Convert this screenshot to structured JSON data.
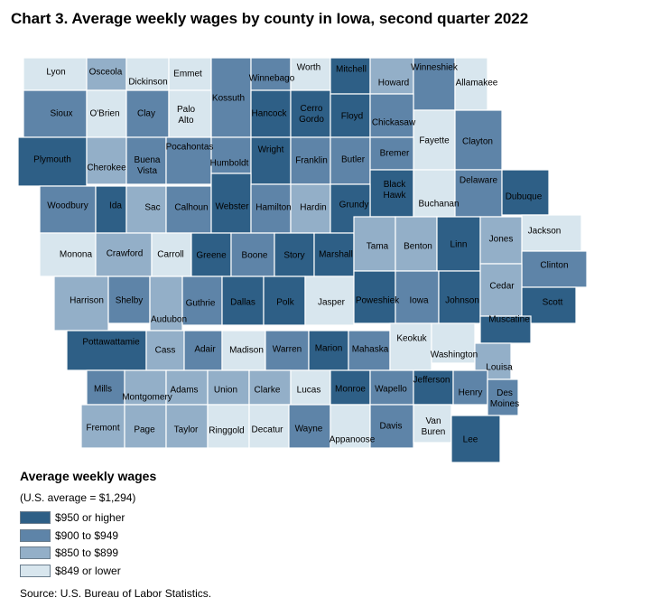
{
  "title": "Chart 3. Average weekly wages by county in Iowa, second quarter 2022",
  "legend": {
    "title": "Average weekly wages",
    "note": "(U.S. average = $1,294)",
    "items": [
      {
        "label": "$950 or higher",
        "color": "#2e5f86"
      },
      {
        "label": "$900 to $949",
        "color": "#5e84a8"
      },
      {
        "label": "$850 to $899",
        "color": "#93afc8"
      },
      {
        "label": "$849 or lower",
        "color": "#d8e6ee"
      }
    ]
  },
  "source": "Source: U.S. Bureau of Labor Statistics.",
  "counties": [
    {
      "name": "Lyon",
      "class": 3
    },
    {
      "name": "Osceola",
      "class": 2
    },
    {
      "name": "Dickinson",
      "class": 3
    },
    {
      "name": "Emmet",
      "class": 3
    },
    {
      "name": "Kossuth",
      "class": 1
    },
    {
      "name": "Winnebago",
      "class": 1
    },
    {
      "name": "Worth",
      "class": 3
    },
    {
      "name": "Mitchell",
      "class": 0
    },
    {
      "name": "Howard",
      "class": 2
    },
    {
      "name": "Winneshiek",
      "class": 1
    },
    {
      "name": "Allamakee",
      "class": 3
    },
    {
      "name": "Sioux",
      "class": 1
    },
    {
      "name": "O'Brien",
      "class": 3
    },
    {
      "name": "Clay",
      "class": 1
    },
    {
      "name": "Palo Alto",
      "class": 3
    },
    {
      "name": "Hancock",
      "class": 0
    },
    {
      "name": "Cerro Gordo",
      "class": 0
    },
    {
      "name": "Floyd",
      "class": 0
    },
    {
      "name": "Chickasaw",
      "class": 1
    },
    {
      "name": "Fayette",
      "class": 3
    },
    {
      "name": "Clayton",
      "class": 1
    },
    {
      "name": "Plymouth",
      "class": 0
    },
    {
      "name": "Cherokee",
      "class": 2
    },
    {
      "name": "Buena Vista",
      "class": 1
    },
    {
      "name": "Pocahontas",
      "class": 1
    },
    {
      "name": "Humboldt",
      "class": 1
    },
    {
      "name": "Wright",
      "class": 0
    },
    {
      "name": "Franklin",
      "class": 1
    },
    {
      "name": "Butler",
      "class": 1
    },
    {
      "name": "Bremer",
      "class": 1
    },
    {
      "name": "Black Hawk",
      "class": 0
    },
    {
      "name": "Buchanan",
      "class": 3
    },
    {
      "name": "Delaware",
      "class": 1
    },
    {
      "name": "Dubuque",
      "class": 0
    },
    {
      "name": "Woodbury",
      "class": 1
    },
    {
      "name": "Ida",
      "class": 0
    },
    {
      "name": "Sac",
      "class": 2
    },
    {
      "name": "Calhoun",
      "class": 1
    },
    {
      "name": "Webster",
      "class": 0
    },
    {
      "name": "Hamilton",
      "class": 1
    },
    {
      "name": "Hardin",
      "class": 2
    },
    {
      "name": "Grundy",
      "class": 0
    },
    {
      "name": "Jackson",
      "class": 3
    },
    {
      "name": "Monona",
      "class": 3
    },
    {
      "name": "Crawford",
      "class": 2
    },
    {
      "name": "Carroll",
      "class": 3
    },
    {
      "name": "Greene",
      "class": 0
    },
    {
      "name": "Boone",
      "class": 1
    },
    {
      "name": "Story",
      "class": 0
    },
    {
      "name": "Marshall",
      "class": 0
    },
    {
      "name": "Tama",
      "class": 2
    },
    {
      "name": "Benton",
      "class": 2
    },
    {
      "name": "Linn",
      "class": 0
    },
    {
      "name": "Jones",
      "class": 2
    },
    {
      "name": "Clinton",
      "class": 1
    },
    {
      "name": "Harrison",
      "class": 2
    },
    {
      "name": "Shelby",
      "class": 1
    },
    {
      "name": "Audubon",
      "class": 2
    },
    {
      "name": "Guthrie",
      "class": 1
    },
    {
      "name": "Dallas",
      "class": 0
    },
    {
      "name": "Polk",
      "class": 0
    },
    {
      "name": "Jasper",
      "class": 3
    },
    {
      "name": "Poweshiek",
      "class": 0
    },
    {
      "name": "Iowa",
      "class": 1
    },
    {
      "name": "Johnson",
      "class": 0
    },
    {
      "name": "Cedar",
      "class": 2
    },
    {
      "name": "Scott",
      "class": 0
    },
    {
      "name": "Muscatine",
      "class": 0
    },
    {
      "name": "Pottawattamie",
      "class": 0
    },
    {
      "name": "Cass",
      "class": 2
    },
    {
      "name": "Adair",
      "class": 1
    },
    {
      "name": "Madison",
      "class": 3
    },
    {
      "name": "Warren",
      "class": 1
    },
    {
      "name": "Marion",
      "class": 0
    },
    {
      "name": "Mahaska",
      "class": 1
    },
    {
      "name": "Keokuk",
      "class": 3
    },
    {
      "name": "Washington",
      "class": 3
    },
    {
      "name": "Louisa",
      "class": 2
    },
    {
      "name": "Mills",
      "class": 1
    },
    {
      "name": "Montgomery",
      "class": 2
    },
    {
      "name": "Adams",
      "class": 2
    },
    {
      "name": "Union",
      "class": 2
    },
    {
      "name": "Clarke",
      "class": 2
    },
    {
      "name": "Lucas",
      "class": 3
    },
    {
      "name": "Monroe",
      "class": 0
    },
    {
      "name": "Wapello",
      "class": 1
    },
    {
      "name": "Jefferson",
      "class": 0
    },
    {
      "name": "Henry",
      "class": 1
    },
    {
      "name": "Des Moines",
      "class": 1
    },
    {
      "name": "Fremont",
      "class": 2
    },
    {
      "name": "Page",
      "class": 2
    },
    {
      "name": "Taylor",
      "class": 2
    },
    {
      "name": "Ringgold",
      "class": 3
    },
    {
      "name": "Decatur",
      "class": 3
    },
    {
      "name": "Wayne",
      "class": 1
    },
    {
      "name": "Appanoose",
      "class": 3
    },
    {
      "name": "Davis",
      "class": 1
    },
    {
      "name": "Van Buren",
      "class": 3
    },
    {
      "name": "Lee",
      "class": 0
    }
  ]
}
